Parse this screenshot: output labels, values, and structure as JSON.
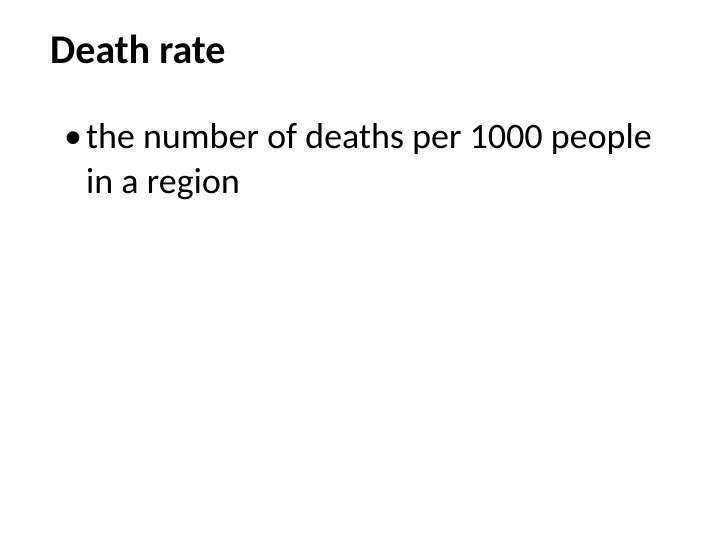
{
  "slide": {
    "title": "Death rate",
    "bullets": [
      {
        "marker": "•",
        "text": "the number of deaths per 1000 people in a region"
      }
    ]
  },
  "styling": {
    "background_color": "#ffffff",
    "text_color": "#000000",
    "title_fontsize": 40,
    "title_fontweight": "bold",
    "body_fontsize": 36,
    "body_fontweight": "normal",
    "font_family": "Calibri"
  }
}
